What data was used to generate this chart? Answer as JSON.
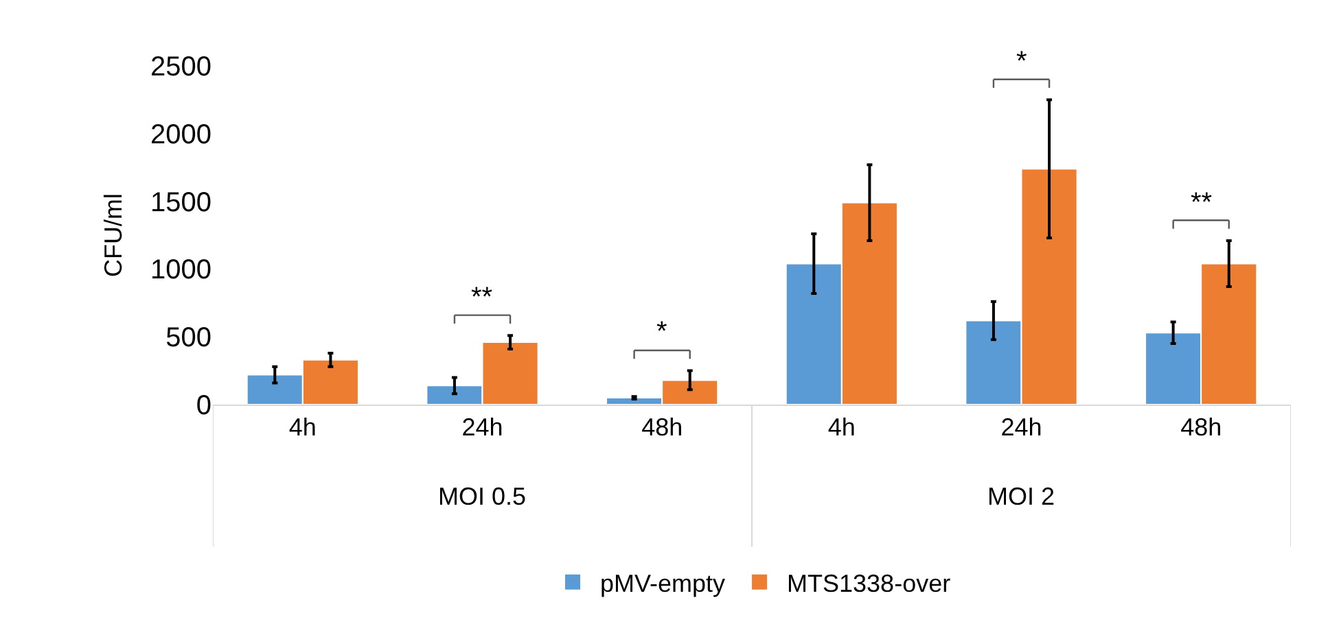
{
  "chart_data": {
    "type": "bar",
    "ylabel": "CFU/ml",
    "categories": [
      "4h",
      "24h",
      "48h",
      "4h",
      "24h",
      "48h"
    ],
    "series": [
      {
        "name": "pMV-empty",
        "color": "#5b9bd5",
        "values": [
          220,
          140,
          50,
          1040,
          620,
          530
        ],
        "errors": [
          60,
          60,
          10,
          220,
          140,
          80
        ]
      },
      {
        "name": "MTS1338-over",
        "color": "#ed7d31",
        "values": [
          330,
          460,
          180,
          1490,
          1740,
          1040
        ],
        "errors": [
          50,
          50,
          70,
          280,
          510,
          170
        ]
      }
    ],
    "ylim": [
      0,
      2500
    ],
    "yticks": [
      0,
      500,
      1000,
      1500,
      2000,
      2500
    ],
    "annotations": [
      "MOI 0.5",
      "MOI 2",
      "**",
      "*",
      "*",
      "**"
    ],
    "legend": "bottom"
  }
}
